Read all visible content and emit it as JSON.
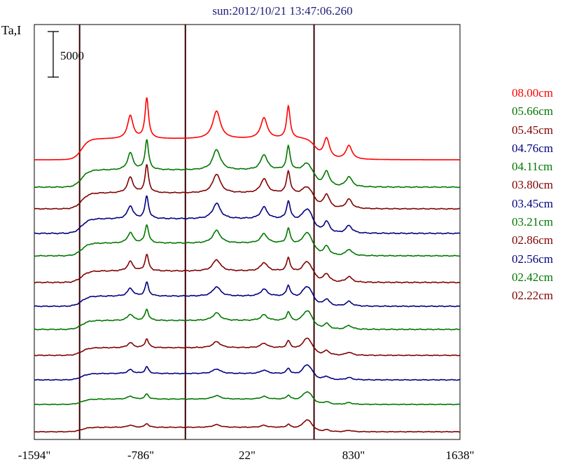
{
  "chart_data": {
    "type": "line",
    "title": "sun:2012/10/21 13:47:06.260",
    "ylabel": "Ta,I",
    "scale_bar_label": "5000",
    "xlim": [
      -1594,
      1638
    ],
    "x_ticks": [
      -1594,
      -786,
      22,
      830,
      1638
    ],
    "x_tick_labels": [
      "-1594\"",
      "-786\"",
      "22\"",
      "830\"",
      "1638\""
    ],
    "vertical_lines_x": [
      -1250,
      -447,
      530
    ],
    "series": [
      {
        "name": "08.00cm",
        "color": "#ff0000",
        "baseline": 228,
        "amp": 1.65,
        "lim": 1.0,
        "rbump": 0.0,
        "ripple": 0.0,
        "seed": 1
      },
      {
        "name": "05.66cm",
        "color": "#007700",
        "baseline": 267,
        "amp": 1.35,
        "lim": 0.9,
        "rbump": 0.03,
        "ripple": 0.3,
        "seed": 2
      },
      {
        "name": "05.45cm",
        "color": "#800000",
        "baseline": 298,
        "amp": 1.25,
        "lim": 0.9,
        "rbump": 0.03,
        "ripple": 0.3,
        "seed": 3
      },
      {
        "name": "04.76cm",
        "color": "#000080",
        "baseline": 333,
        "amp": 1.15,
        "lim": 0.8,
        "rbump": 0.05,
        "ripple": 0.4,
        "seed": 4
      },
      {
        "name": "04.11cm",
        "color": "#007700",
        "baseline": 365,
        "amp": 1.0,
        "lim": 0.75,
        "rbump": 0.06,
        "ripple": 0.4,
        "seed": 5
      },
      {
        "name": "03.80cm",
        "color": "#800000",
        "baseline": 403,
        "amp": 0.9,
        "lim": 0.75,
        "rbump": 0.06,
        "ripple": 0.5,
        "seed": 6
      },
      {
        "name": "03.45cm",
        "color": "#000080",
        "baseline": 437,
        "amp": 0.8,
        "lim": 0.7,
        "rbump": 0.07,
        "ripple": 0.5,
        "seed": 7
      },
      {
        "name": "03.21cm",
        "color": "#007700",
        "baseline": 470,
        "amp": 0.7,
        "lim": 0.65,
        "rbump": 0.08,
        "ripple": 0.6,
        "seed": 8
      },
      {
        "name": "02.86cm",
        "color": "#800000",
        "baseline": 507,
        "amp": 0.6,
        "lim": 0.6,
        "rbump": 0.09,
        "ripple": 0.6,
        "seed": 9
      },
      {
        "name": "02.56cm",
        "color": "#000080",
        "baseline": 542,
        "amp": 0.5,
        "lim": 0.55,
        "rbump": 0.1,
        "ripple": 0.7,
        "seed": 10
      },
      {
        "name": "02.42cm",
        "color": "#007700",
        "baseline": 577,
        "amp": 0.42,
        "lim": 0.5,
        "rbump": 0.1,
        "ripple": 0.7,
        "seed": 11
      },
      {
        "name": "02.22cm",
        "color": "#800000",
        "baseline": 616,
        "amp": 0.35,
        "lim": 0.45,
        "rbump": 0.12,
        "ripple": 0.8,
        "seed": 12
      }
    ]
  }
}
